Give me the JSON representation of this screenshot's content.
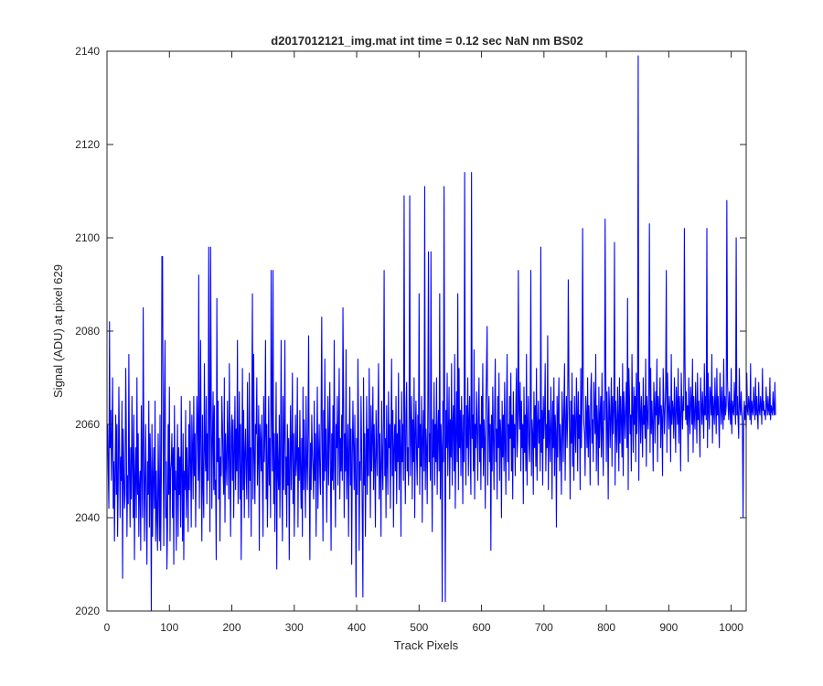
{
  "chart_data": {
    "type": "line",
    "title": "d2017012121_img.mat int time = 0.12 sec  NaN nm BS02",
    "xlabel": "Track Pixels",
    "ylabel": "Signal (ADU) at pixel 629",
    "xlim": [
      0,
      1024
    ],
    "ylim": [
      2020,
      2140
    ],
    "xticks": [
      0,
      100,
      200,
      300,
      400,
      500,
      600,
      700,
      800,
      900,
      1000
    ],
    "yticks": [
      2020,
      2040,
      2060,
      2080,
      2100,
      2120,
      2140
    ],
    "grid": false,
    "line_color": "#0000ff",
    "series": [
      {
        "x_start": 1,
        "x_step": 1,
        "values": [
          2060,
          2050,
          2042,
          2082,
          2055,
          2063,
          2048,
          2058,
          2070,
          2042,
          2052,
          2035,
          2050,
          2062,
          2045,
          2060,
          2036,
          2047,
          2068,
          2055,
          2040,
          2053,
          2048,
          2065,
          2027,
          2059,
          2050,
          2042,
          2045,
          2072,
          2058,
          2036,
          2049,
          2043,
          2075,
          2050,
          2038,
          2055,
          2044,
          2066,
          2052,
          2040,
          2062,
          2031,
          2049,
          2055,
          2040,
          2070,
          2045,
          2058,
          2036,
          2047,
          2050,
          2033,
          2064,
          2050,
          2040,
          2085,
          2055,
          2035,
          2048,
          2060,
          2042,
          2030,
          2052,
          2045,
          2065,
          2038,
          2058,
          2050,
          2020,
          2060,
          2036,
          2048,
          2055,
          2042,
          2065,
          2035,
          2050,
          2040,
          2033,
          2058,
          2046,
          2035,
          2062,
          2033,
          2048,
          2096,
          2040,
          2055,
          2034,
          2065,
          2078,
          2040,
          2052,
          2029,
          2038,
          2060,
          2045,
          2068,
          2035,
          2050,
          2052,
          2058,
          2040,
          2055,
          2030,
          2064,
          2046,
          2050,
          2033,
          2048,
          2060,
          2036,
          2055,
          2045,
          2053,
          2038,
          2066,
          2049,
          2035,
          2058,
          2031,
          2050,
          2046,
          2063,
          2040,
          2055,
          2048,
          2037,
          2060,
          2046,
          2065,
          2052,
          2038,
          2062,
          2055,
          2044,
          2066,
          2049,
          2058,
          2038,
          2053,
          2066,
          2059,
          2048,
          2092,
          2042,
          2056,
          2078,
          2050,
          2035,
          2062,
          2047,
          2040,
          2073,
          2055,
          2050,
          2066,
          2043,
          2058,
          2048,
          2098,
          2060,
          2037,
          2055,
          2066,
          2042,
          2057,
          2067,
          2046,
          2064,
          2045,
          2048,
          2031,
          2087,
          2052,
          2065,
          2044,
          2057,
          2035,
          2053,
          2049,
          2066,
          2060,
          2050,
          2045,
          2070,
          2039,
          2058,
          2052,
          2047,
          2065,
          2055,
          2044,
          2073,
          2053,
          2036,
          2058,
          2062,
          2048,
          2061,
          2040,
          2054,
          2066,
          2046,
          2059,
          2050,
          2078,
          2043,
          2055,
          2067,
          2044,
          2060,
          2031,
          2050,
          2072,
          2046,
          2063,
          2040,
          2054,
          2059,
          2049,
          2044,
          2069,
          2052,
          2040,
          2071,
          2048,
          2055,
          2036,
          2063,
          2050,
          2044,
          2075,
          2053,
          2043,
          2060,
          2058,
          2070,
          2047,
          2053,
          2064,
          2033,
          2060,
          2056,
          2050,
          2062,
          2048,
          2036,
          2066,
          2052,
          2058,
          2078,
          2044,
          2060,
          2038,
          2050,
          2066,
          2047,
          2057,
          2040,
          2055,
          2064,
          2050,
          2093,
          2043,
          2058,
          2037,
          2053,
          2069,
          2029,
          2058,
          2050,
          2046,
          2062,
          2040,
          2055,
          2078,
          2050,
          2035,
          2066,
          2046,
          2058,
          2078,
          2045,
          2053,
          2038,
          2060,
          2047,
          2057,
          2031,
          2052,
          2064,
          2046,
          2055,
          2071,
          2043,
          2058,
          2036,
          2050,
          2062,
          2049,
          2053,
          2070,
          2038,
          2055,
          2048,
          2063,
          2050,
          2042,
          2057,
          2036,
          2068,
          2046,
          2061,
          2050,
          2040,
          2066,
          2052,
          2046,
          2059,
          2079,
          2050,
          2031,
          2056,
          2046,
          2062,
          2054,
          2050,
          2044,
          2065,
          2048,
          2058,
          2036,
          2055,
          2068,
          2042,
          2053,
          2060,
          2049,
          2045,
          2061,
          2083,
          2053,
          2035,
          2063,
          2048,
          2074,
          2050,
          2059,
          2039,
          2052,
          2066,
          2047,
          2057,
          2069,
          2051,
          2033,
          2058,
          2048,
          2064,
          2046,
          2078,
          2053,
          2038,
          2060,
          2055,
          2066,
          2047,
          2058,
          2072,
          2044,
          2057,
          2050,
          2062,
          2048,
          2054,
          2066,
          2040,
          2058,
          2050,
          2076,
          2044,
          2052,
          2060,
          2036,
          2055,
          2068,
          2047,
          2059,
          2030,
          2053,
          2065,
          2055,
          2046,
          2062,
          2048,
          2023,
          2057,
          2045,
          2074,
          2060,
          2033,
          2052,
          2048,
          2066,
          2054,
          2040,
          2061,
          2070,
          2047,
          2058,
          2036,
          2052,
          2066,
          2045,
          2059,
          2049,
          2072,
          2055,
          2040,
          2064,
          2050,
          2057,
          2068,
          2046,
          2060,
          2052,
          2038,
          2063,
          2055,
          2049,
          2061,
          2073,
          2044,
          2058,
          2050,
          2036,
          2065,
          2053,
          2046,
          2061,
          2077,
          2049,
          2057,
          2040,
          2064,
          2052,
          2045,
          2067,
          2055,
          2060,
          2042,
          2058,
          2074,
          2049,
          2063,
          2038,
          2055,
          2060,
          2050,
          2066,
          2043,
          2058,
          2052,
          2071,
          2046,
          2061,
          2055,
          2036,
          2067,
          2052,
          2060,
          2048,
          2064,
          2057,
          2043,
          2062,
          2069,
          2050,
          2055,
          2047,
          2063,
          2109,
          2049,
          2058,
          2066,
          2044,
          2061,
          2052,
          2070,
          2040,
          2058,
          2065,
          2053,
          2047,
          2062,
          2055,
          2088,
          2045,
          2060,
          2051,
          2066,
          2039,
          2057,
          2063,
          2050,
          2071,
          2046,
          2059,
          2055,
          2043,
          2064,
          2097,
          2052,
          2058,
          2048,
          2066,
          2055,
          2037,
          2061,
          2053,
          2069,
          2047,
          2060,
          2052,
          2070,
          2045,
          2058,
          2063,
          2050,
          2088,
          2044,
          2060,
          2055,
          2022,
          2065,
          2052,
          2111,
          2060,
          2046,
          2063,
          2055,
          2071,
          2049,
          2058,
          2068,
          2044,
          2061,
          2053,
          2073,
          2047,
          2060,
          2064,
          2050,
          2075,
          2042,
          2058,
          2067,
          2052,
          2060,
          2046,
          2072,
          2055,
          2063,
          2049,
          2066,
          2058,
          2043,
          2062,
          2052,
          2114,
          2060,
          2047,
          2064,
          2055,
          2070,
          2049,
          2061,
          2066,
          2053,
          2045,
          2071,
          2057,
          2062,
          2050,
          2076,
          2044,
          2060,
          2055,
          2067,
          2059,
          2048,
          2063,
          2070,
          2052,
          2060,
          2046,
          2066,
          2055,
          2073,
          2049,
          2061,
          2057,
          2042,
          2064,
          2053,
          2081,
          2047,
          2060,
          2066,
          2052,
          2060,
          2033,
          2062,
          2050,
          2068,
          2057,
          2046,
          2063,
          2074,
          2052,
          2059,
          2044,
          2066,
          2055,
          2071,
          2048,
          2061,
          2058,
          2040,
          2065,
          2053,
          2062,
          2050,
          2069,
          2056,
          2045,
          2063,
          2075,
          2052,
          2060,
          2048,
          2066,
          2057,
          2071,
          2050,
          2062,
          2044,
          2067,
          2055,
          2060,
          2049,
          2064,
          2072,
          2053,
          2057,
          2046,
          2063,
          2059,
          2069,
          2050,
          2065,
          2055,
          2060,
          2043,
          2068,
          2054,
          2062,
          2050,
          2075,
          2047,
          2060,
          2066,
          2056,
          2052,
          2063,
          2070,
          2049,
          2061,
          2058,
          2045,
          2067,
          2055,
          2064,
          2051,
          2072,
          2048,
          2060,
          2065,
          2056,
          2061,
          2050,
          2069,
          2054,
          2063,
          2047,
          2066,
          2057,
          2062,
          2073,
          2050,
          2060,
          2055,
          2079,
          2046,
          2063,
          2058,
          2052,
          2068,
          2060,
          2044,
          2065,
          2055,
          2070,
          2049,
          2062,
          2058,
          2038,
          2066,
          2053,
          2063,
          2070,
          2050,
          2060,
          2056,
          2045,
          2067,
          2061,
          2052,
          2064,
          2073,
          2048,
          2060,
          2066,
          2055,
          2062,
          2050,
          2069,
          2058,
          2044,
          2065,
          2056,
          2071,
          2051,
          2062,
          2048,
          2066,
          2059,
          2054,
          2070,
          2063,
          2050,
          2067,
          2057,
          2062,
          2046,
          2072,
          2055,
          2064,
          2052,
          2068,
          2060,
          2058,
          2049,
          2066,
          2062,
          2055,
          2070,
          2053,
          2064,
          2059,
          2047,
          2067,
          2071,
          2056,
          2061,
          2052,
          2069,
          2063,
          2058,
          2075,
          2050,
          2064,
          2060,
          2047,
          2068,
          2055,
          2062,
          2066,
          2053,
          2071,
          2058,
          2049,
          2065,
          2061,
          2056,
          2073,
          2052,
          2067,
          2060,
          2044,
          2068,
          2064,
          2055,
          2062,
          2070,
          2051,
          2066,
          2058,
          2063,
          2075,
          2047,
          2065,
          2060,
          2054,
          2068,
          2062,
          2050,
          2070,
          2056,
          2066,
          2061,
          2053,
          2073,
          2049,
          2067,
          2062,
          2057,
          2064,
          2069,
          2055,
          2060,
          2046,
          2072,
          2066,
          2058,
          2062,
          2050,
          2075,
          2063,
          2054,
          2068,
          2060,
          2066,
          2052,
          2071,
          2058,
          2064,
          2060,
          2048,
          2069,
          2063,
          2056,
          2066,
          2061,
          2053,
          2070,
          2060,
          2064,
          2057,
          2074,
          2051,
          2066,
          2062,
          2059,
          2068,
          2063,
          2054,
          2072,
          2058,
          2065,
          2060,
          2050,
          2069,
          2064,
          2056,
          2067,
          2062,
          2074,
          2052,
          2066,
          2060,
          2063,
          2070,
          2055,
          2064,
          2061,
          2049,
          2072,
          2065,
          2058,
          2063,
          2068,
          2060,
          2054,
          2071,
          2064,
          2059,
          2066,
          2062,
          2052,
          2075,
          2060,
          2065,
          2063,
          2057,
          2070,
          2062,
          2054,
          2068,
          2064,
          2060,
          2072,
          2056,
          2066,
          2062,
          2050,
          2071,
          2064,
          2059,
          2066,
          2063,
          2055,
          2073,
          2061,
          2067,
          2060,
          2064,
          2052,
          2070,
          2063,
          2058,
          2068,
          2065,
          2060,
          2074,
          2054,
          2066,
          2062,
          2059,
          2069,
          2063,
          2056,
          2071,
          2061,
          2065,
          2060,
          2053,
          2070,
          2064,
          2060,
          2067,
          2062,
          2057,
          2073,
          2062,
          2066,
          2061,
          2064,
          2055,
          2071,
          2063,
          2059,
          2068,
          2066,
          2062,
          2075,
          2056,
          2066,
          2063,
          2060,
          2070,
          2064,
          2058,
          2072,
          2062,
          2066,
          2061,
          2055,
          2071,
          2065,
          2060,
          2068,
          2063,
          2059,
          2074,
          2061,
          2066,
          2062,
          2064,
          2058,
          2070,
          2064,
          2061,
          2067,
          2063,
          2060,
          2072,
          2058,
          2065,
          2063,
          2062,
          2069,
          2064,
          2060,
          2071,
          2062,
          2066,
          2061,
          2057,
          2072,
          2064,
          2062,
          2067,
          2063,
          2060,
          2070,
          2062,
          2065,
          2061,
          2064,
          2059,
          2071,
          2063,
          2062,
          2066,
          2064,
          2061,
          2073,
          2060,
          2065,
          2063,
          2062,
          2068,
          2064,
          2061,
          2070,
          2062,
          2066,
          2062,
          2059,
          2069,
          2063,
          2062,
          2066,
          2064,
          2060,
          2072,
          2063,
          2065,
          2062,
          2063,
          2061,
          2068,
          2064,
          2062,
          2066,
          2063,
          2062,
          2070,
          2061,
          2064,
          2063,
          2062,
          2067,
          2063,
          2062,
          2069,
          2062
        ],
        "overrides": [
          [
            88,
            2096
          ],
          [
            165,
            2098
          ],
          [
            232,
            2088
          ],
          [
            262,
            2093
          ],
          [
            377,
            2085
          ],
          [
            409,
            2023
          ],
          [
            443,
            2093
          ],
          [
            475,
            2109
          ],
          [
            508,
            2111
          ],
          [
            518,
            2097
          ],
          [
            541,
            2022
          ],
          [
            561,
            2088
          ],
          [
            583,
            2114
          ],
          [
            607,
            2072
          ],
          [
            658,
            2093
          ],
          [
            678,
            2093
          ],
          [
            694,
            2098
          ],
          [
            738,
            2091
          ],
          [
            761,
            2102
          ],
          [
            797,
            2104
          ],
          [
            812,
            2099
          ],
          [
            833,
            2087
          ],
          [
            850,
            2139
          ],
          [
            868,
            2103
          ],
          [
            895,
            2093
          ],
          [
            924,
            2102
          ],
          [
            960,
            2102
          ],
          [
            992,
            2108
          ],
          [
            1007,
            2100
          ],
          [
            1018,
            2040
          ]
        ]
      }
    ]
  }
}
